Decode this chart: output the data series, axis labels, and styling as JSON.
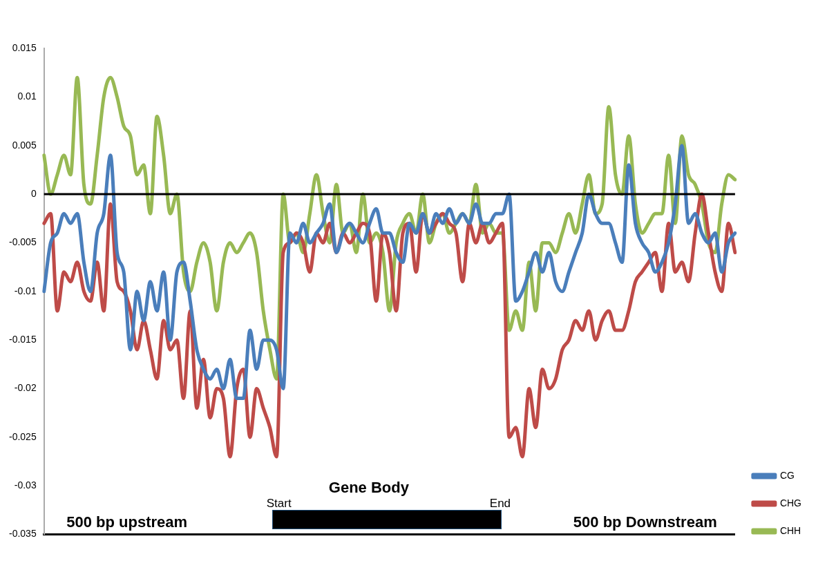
{
  "chart_data": {
    "type": "line",
    "categories": [
      null,
      null,
      null,
      null,
      null,
      null,
      null,
      null,
      null,
      null,
      null,
      null,
      null,
      null,
      null,
      null,
      null,
      null,
      null,
      null,
      null,
      null,
      null,
      null,
      null,
      null,
      null,
      null,
      null,
      null,
      null,
      null,
      null,
      null,
      null,
      null,
      null,
      null,
      null,
      null,
      null,
      null,
      null,
      null,
      null,
      null,
      null,
      null,
      null,
      null,
      null,
      null,
      null,
      null,
      null,
      null,
      null,
      null,
      null,
      null,
      null,
      null,
      null,
      null,
      null,
      null,
      null,
      null,
      null,
      null,
      null,
      null,
      null,
      null,
      null,
      null,
      null,
      null,
      null,
      null,
      null,
      null,
      null,
      null,
      null,
      null,
      null,
      null,
      null,
      null,
      null,
      null,
      null,
      null,
      null,
      null,
      null,
      null,
      null,
      null,
      null,
      null,
      null,
      null,
      null
    ],
    "series": [
      {
        "name": "CG",
        "color": "#4a7ebb",
        "values": [
          -0.01,
          -0.005,
          -0.004,
          -0.002,
          -0.003,
          -0.002,
          -0.007,
          -0.01,
          -0.004,
          -0.002,
          0.004,
          -0.006,
          -0.008,
          -0.016,
          -0.01,
          -0.013,
          -0.009,
          -0.012,
          -0.008,
          -0.015,
          -0.008,
          -0.007,
          -0.011,
          -0.016,
          -0.018,
          -0.019,
          -0.018,
          -0.02,
          -0.017,
          -0.021,
          -0.021,
          -0.014,
          -0.018,
          -0.015,
          -0.015,
          -0.016,
          -0.02,
          -0.004,
          -0.005,
          -0.003,
          -0.005,
          -0.004,
          -0.003,
          -0.001,
          -0.006,
          -0.004,
          -0.003,
          -0.004,
          -0.005,
          -0.003,
          -0.0015,
          -0.004,
          -0.004,
          -0.006,
          -0.007,
          -0.003,
          -0.004,
          -0.002,
          -0.004,
          -0.002,
          -0.003,
          -0.0015,
          -0.003,
          -0.002,
          -0.003,
          -0.001,
          -0.003,
          -0.003,
          -0.002,
          -0.002,
          0.0,
          -0.011,
          -0.01,
          -0.008,
          -0.006,
          -0.008,
          -0.006,
          -0.009,
          -0.01,
          -0.008,
          -0.006,
          -0.004,
          0.0,
          -0.002,
          -0.003,
          -0.003,
          -0.005,
          -0.007,
          0.003,
          -0.003,
          -0.005,
          -0.006,
          -0.008,
          -0.007,
          -0.005,
          -0.001,
          0.005,
          -0.003,
          -0.002,
          -0.004,
          -0.005,
          -0.004,
          -0.008,
          -0.005,
          -0.004
        ]
      },
      {
        "name": "CHG",
        "color": "#be4b48",
        "values": [
          -0.003,
          -0.002,
          -0.012,
          -0.008,
          -0.009,
          -0.007,
          -0.01,
          -0.011,
          -0.007,
          -0.012,
          -0.001,
          -0.009,
          -0.01,
          -0.012,
          -0.016,
          -0.013,
          -0.016,
          -0.019,
          -0.013,
          -0.016,
          -0.015,
          -0.021,
          -0.012,
          -0.022,
          -0.017,
          -0.023,
          -0.02,
          -0.021,
          -0.027,
          -0.02,
          -0.018,
          -0.025,
          -0.02,
          -0.022,
          -0.024,
          -0.027,
          -0.006,
          -0.005,
          -0.004,
          -0.005,
          -0.008,
          -0.004,
          -0.005,
          -0.003,
          -0.006,
          -0.004,
          -0.005,
          -0.004,
          -0.003,
          -0.004,
          -0.011,
          -0.004,
          -0.006,
          -0.012,
          -0.004,
          -0.003,
          -0.008,
          -0.002,
          -0.004,
          -0.003,
          -0.002,
          -0.003,
          -0.004,
          -0.009,
          -0.003,
          -0.005,
          -0.003,
          -0.005,
          -0.004,
          -0.003,
          -0.025,
          -0.024,
          -0.027,
          -0.02,
          -0.024,
          -0.018,
          -0.02,
          -0.019,
          -0.016,
          -0.015,
          -0.013,
          -0.014,
          -0.012,
          -0.015,
          -0.013,
          -0.012,
          -0.014,
          -0.014,
          -0.012,
          -0.009,
          -0.008,
          -0.007,
          -0.006,
          -0.01,
          -0.003,
          -0.008,
          -0.007,
          -0.009,
          -0.004,
          0.0,
          -0.004,
          -0.008,
          -0.01,
          -0.003,
          -0.006
        ]
      },
      {
        "name": "CHH",
        "color": "#98b954",
        "values": [
          0.004,
          0.0,
          0.002,
          0.004,
          0.002,
          0.012,
          0.001,
          -0.001,
          0.004,
          0.01,
          0.012,
          0.01,
          0.007,
          0.006,
          0.002,
          0.003,
          -0.002,
          0.008,
          0.004,
          -0.002,
          0.0,
          -0.008,
          -0.01,
          -0.007,
          -0.005,
          -0.007,
          -0.012,
          -0.007,
          -0.005,
          -0.006,
          -0.005,
          -0.004,
          -0.006,
          -0.012,
          -0.016,
          -0.019,
          0.0,
          -0.005,
          -0.004,
          -0.006,
          -0.002,
          0.002,
          -0.002,
          -0.005,
          0.001,
          -0.004,
          -0.003,
          -0.006,
          0.0,
          -0.005,
          -0.004,
          -0.006,
          -0.012,
          -0.005,
          -0.003,
          -0.002,
          -0.004,
          0.0,
          -0.005,
          -0.003,
          -0.002,
          -0.004,
          -0.003,
          -0.002,
          -0.003,
          0.001,
          -0.004,
          -0.003,
          -0.004,
          -0.004,
          -0.014,
          -0.012,
          -0.014,
          -0.007,
          -0.012,
          -0.005,
          -0.005,
          -0.006,
          -0.004,
          -0.002,
          -0.004,
          -0.001,
          0.002,
          -0.002,
          -0.001,
          0.009,
          0.002,
          0.0,
          0.006,
          -0.001,
          -0.004,
          -0.003,
          -0.002,
          -0.002,
          0.004,
          -0.003,
          0.006,
          0.002,
          0.001,
          -0.001,
          -0.005,
          -0.006,
          -0.001,
          0.002,
          0.0015
        ]
      }
    ],
    "ylim": [
      -0.035,
      0.015
    ],
    "yticks": [
      -0.035,
      -0.03,
      -0.025,
      -0.02,
      -0.015,
      -0.01,
      -0.005,
      0,
      0.005,
      0.01,
      0.015
    ],
    "ref_lines": [
      {
        "axis": "y",
        "value": 0,
        "color": "#000000"
      }
    ],
    "annotations": [
      "500 bp upstream",
      "Start",
      "Gene Body",
      "End",
      "500 bp Downstream"
    ],
    "grid": false,
    "legend": "bottom right",
    "marker": "none",
    "line_style": "solid"
  }
}
